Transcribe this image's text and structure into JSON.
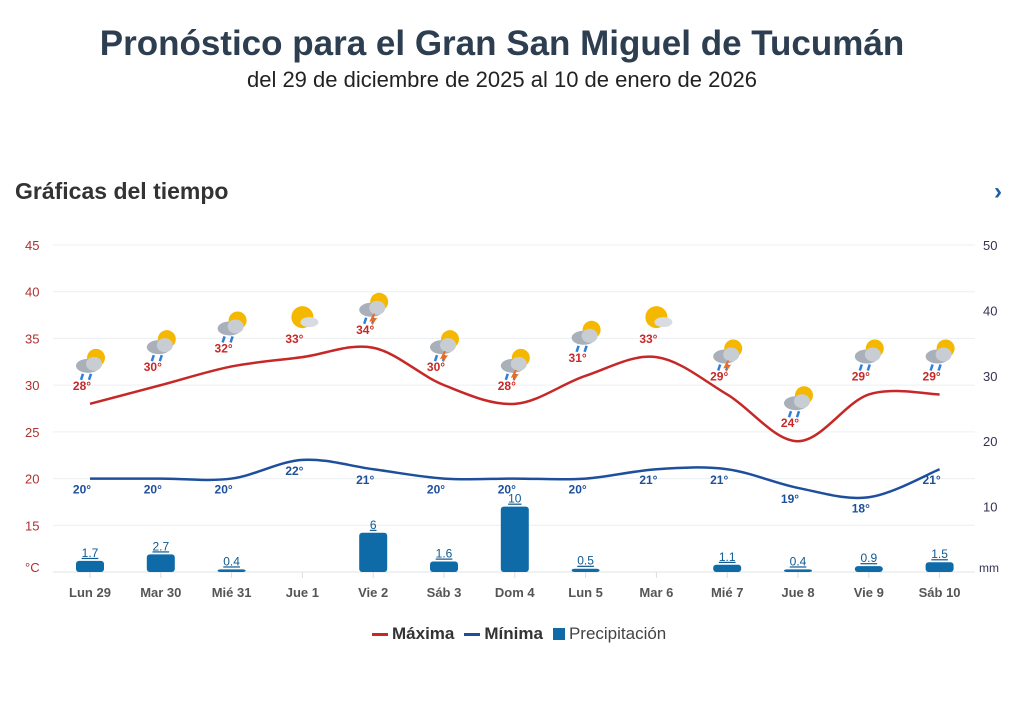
{
  "header": {
    "title": "Pronóstico para el Gran San Miguel de Tucumán",
    "subtitle": "del 29 de diciembre de 2025 al 10 de enero de 2026"
  },
  "section": {
    "title": "Gráficas del tiempo",
    "next_icon": "chevron-right-icon"
  },
  "chart_data": {
    "type": "line+bar",
    "categories": [
      "Lun 29",
      "Mar 30",
      "Mié 31",
      "Jue 1",
      "Vie 2",
      "Sáb 3",
      "Dom 4",
      "Lun 5",
      "Mar 6",
      "Mié 7",
      "Jue 8",
      "Vie 9",
      "Sáb 10"
    ],
    "series": [
      {
        "name": "Máxima",
        "type": "line",
        "axis": "left",
        "color": "#c62828",
        "values": [
          28,
          30,
          32,
          33,
          34,
          30,
          28,
          31,
          33,
          29,
          24,
          29,
          29
        ]
      },
      {
        "name": "Mínima",
        "type": "line",
        "axis": "left",
        "color": "#1d4f9c",
        "values": [
          20,
          20,
          20,
          22,
          21,
          20,
          20,
          20,
          21,
          21,
          19,
          18,
          21
        ]
      },
      {
        "name": "Precipitación",
        "type": "bar",
        "axis": "right",
        "color": "#0f6aa8",
        "values": [
          1.7,
          2.7,
          0.4,
          null,
          6,
          1.6,
          10,
          0.5,
          null,
          1.1,
          0.4,
          0.9,
          1.5
        ]
      }
    ],
    "icons": [
      "sun-cloud-rain",
      "sun-cloud-rain",
      "sun-cloud-rain",
      "sun-cloud",
      "thunderstorm",
      "thunderstorm",
      "thunderstorm",
      "sun-cloud-rain",
      "sun-cloud",
      "thunderstorm",
      "sun-cloud-rain",
      "sun-cloud-rain",
      "sun-cloud-rain"
    ],
    "y_left": {
      "unit": "°C",
      "ticks": [
        45,
        40,
        35,
        30,
        25,
        20,
        15
      ],
      "range": [
        10,
        45
      ]
    },
    "y_right": {
      "unit": "mm",
      "ticks": [
        50,
        40,
        30,
        20,
        10
      ],
      "range": [
        0,
        50
      ]
    },
    "grid": true,
    "legend_position": "bottom"
  },
  "legend": [
    {
      "label": "Máxima",
      "color": "#c62828"
    },
    {
      "label": "Mínima",
      "color": "#1d4f9c"
    },
    {
      "label": "Precipitación",
      "color": "#0f6aa8"
    }
  ]
}
